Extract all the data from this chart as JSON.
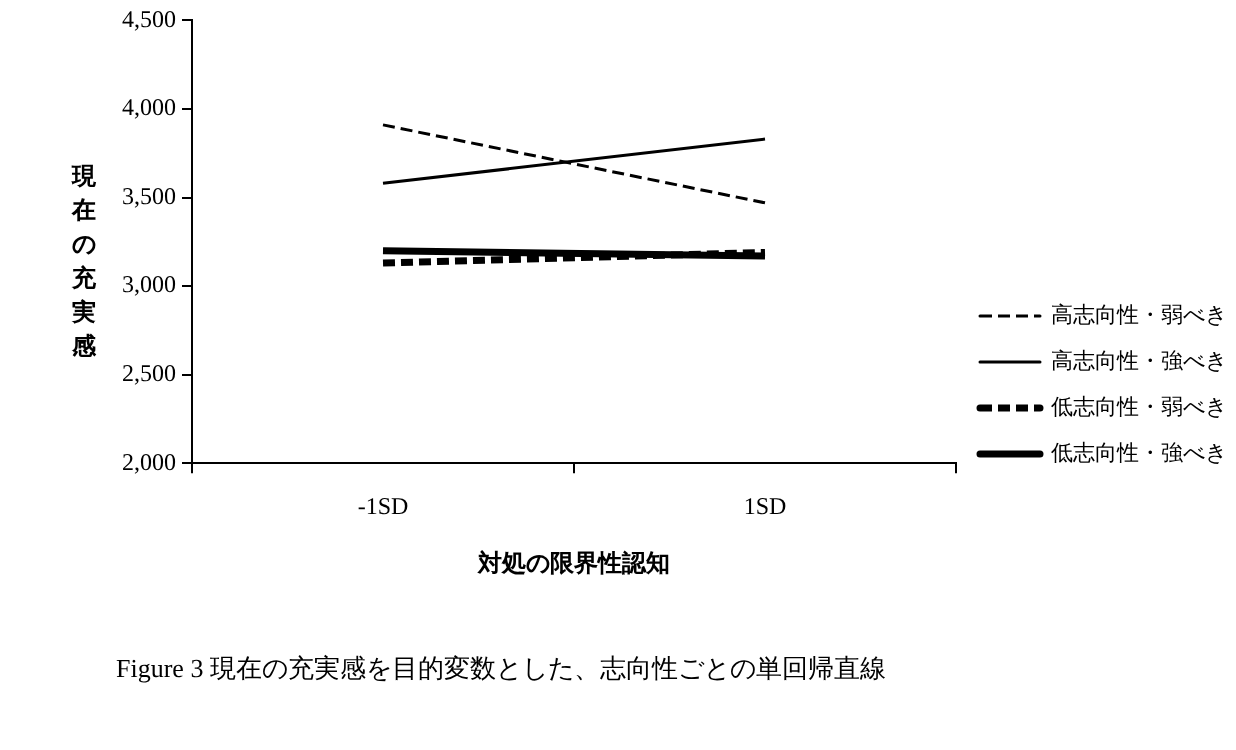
{
  "chart_data": {
    "type": "line",
    "title": "Figure 3 現在の充実感を目的変数とした、志向性ごとの単回帰直線",
    "xlabel": "対処の限界性認知",
    "ylabel": "現在の充実感",
    "categories": [
      "-1SD",
      "1SD"
    ],
    "series": [
      {
        "name": "高志向性・弱べき",
        "color": "#000000",
        "line_style": "dashed",
        "values": [
          3910,
          3470
        ]
      },
      {
        "name": "高志向性・強べき",
        "color": "#000000",
        "line_style": "solid",
        "values": [
          3580,
          3830
        ]
      },
      {
        "name": "低志向性・弱べき",
        "color": "#000000",
        "line_style": "dashed",
        "values": [
          3130,
          3190
        ]
      },
      {
        "name": "低志向性・強べき",
        "color": "#000000",
        "line_style": "solid",
        "values": [
          3200,
          3170
        ]
      }
    ],
    "ylim": [
      2000,
      4500
    ],
    "yticks": [
      {
        "value": 2000,
        "label": "2,000"
      },
      {
        "value": 2500,
        "label": "2,500"
      },
      {
        "value": 3000,
        "label": "3,000"
      },
      {
        "value": 3500,
        "label": "3,500"
      },
      {
        "value": 4000,
        "label": "4,000"
      },
      {
        "value": 4500,
        "label": "4,500"
      }
    ],
    "grid": false,
    "legend": "right",
    "marker": "none"
  }
}
